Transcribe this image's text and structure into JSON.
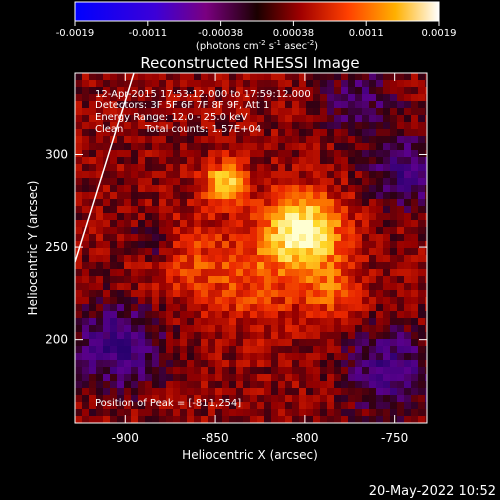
{
  "colorbar": {
    "ticks": [
      "-0.0019",
      "-0.0011",
      "-0.00038",
      "0.00038",
      "0.0011",
      "0.0019"
    ],
    "units_prefix": "(photons cm",
    "units_exp1": "-2",
    "units_mid": " s",
    "units_exp2": "-1",
    "units_mid2": " asec",
    "units_exp3": "-2",
    "units_suffix": ")"
  },
  "title": "Reconstructed RHESSI Image",
  "info": {
    "time": "12-Apr-2015 17:53:12.000 to 17:59:12.000",
    "detectors": "Detectors: 3F 5F 6F 7F 8F 9F, Att 1",
    "energy": "Energy Range: 12.0 - 25.0 keV",
    "method": "Clean",
    "counts": "Total counts: 1.57E+04",
    "peak": "Position of Peak = [-811,254]"
  },
  "axes": {
    "xlabel": "Heliocentric X (arcsec)",
    "ylabel": "Heliocentric Y (arcsec)",
    "xticks": [
      "-900",
      "-850",
      "-800",
      "-750"
    ],
    "yticks": [
      "300",
      "250",
      "200"
    ],
    "xlim": [
      -928,
      -732
    ],
    "ylim": [
      155,
      344
    ]
  },
  "datestamp": "20-May-2022 10:52",
  "colors": {
    "background": "#000000",
    "text": "#ffffff"
  }
}
